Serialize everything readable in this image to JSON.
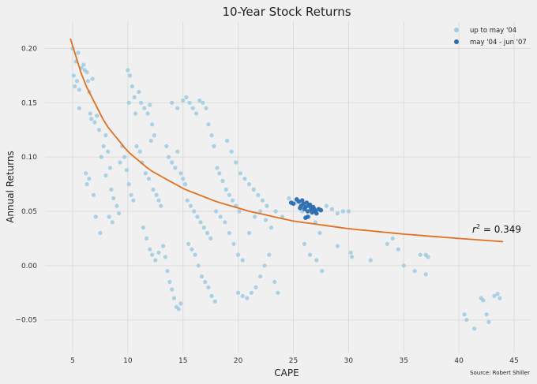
{
  "chart_data": {
    "type": "scatter",
    "title": "10-Year Stock Returns",
    "xlabel": "CAPE",
    "ylabel": "Annual Returns",
    "xlim": [
      2.5,
      46.5
    ],
    "ylim": [
      -0.08,
      0.225
    ],
    "xticks": [
      5,
      10,
      15,
      20,
      25,
      30,
      35,
      40,
      45
    ],
    "yticks": [
      -0.05,
      0.0,
      0.05,
      0.1,
      0.15,
      0.2
    ],
    "xtick_labels": [
      "5",
      "10",
      "15",
      "20",
      "25",
      "30",
      "35",
      "40",
      "45"
    ],
    "ytick_labels": [
      "−0.05",
      "0.00",
      "0.05",
      "0.10",
      "0.15",
      "0.20"
    ],
    "grid": true,
    "legend_position": "top-right",
    "annotation": "r² = 0.349",
    "annotation_parts": {
      "base": "r",
      "sup": "2",
      "rest": " = 0.349"
    },
    "source_note": "Source: Robert Shiller",
    "series": [
      {
        "name": "up to may '04",
        "color": "#9ecae1",
        "points": [
          [
            5.0,
            0.2
          ],
          [
            5.1,
            0.175
          ],
          [
            5.2,
            0.165
          ],
          [
            5.3,
            0.188
          ],
          [
            5.4,
            0.17
          ],
          [
            5.5,
            0.196
          ],
          [
            5.6,
            0.162
          ],
          [
            5.6,
            0.145
          ],
          [
            5.8,
            0.182
          ],
          [
            6.0,
            0.185
          ],
          [
            6.1,
            0.18
          ],
          [
            6.3,
            0.178
          ],
          [
            6.4,
            0.17
          ],
          [
            6.5,
            0.16
          ],
          [
            6.8,
            0.172
          ],
          [
            6.6,
            0.14
          ],
          [
            6.7,
            0.135
          ],
          [
            7.0,
            0.132
          ],
          [
            7.2,
            0.138
          ],
          [
            7.4,
            0.125
          ],
          [
            6.2,
            0.085
          ],
          [
            6.5,
            0.08
          ],
          [
            6.3,
            0.075
          ],
          [
            6.9,
            0.065
          ],
          [
            7.1,
            0.045
          ],
          [
            7.5,
            0.03
          ],
          [
            7.6,
            0.1
          ],
          [
            7.8,
            0.11
          ],
          [
            8.0,
            0.12
          ],
          [
            8.2,
            0.105
          ],
          [
            8.4,
            0.09
          ],
          [
            8.0,
            0.083
          ],
          [
            8.5,
            0.07
          ],
          [
            8.7,
            0.062
          ],
          [
            9.0,
            0.055
          ],
          [
            9.2,
            0.048
          ],
          [
            8.3,
            0.045
          ],
          [
            8.6,
            0.04
          ],
          [
            9.3,
            0.095
          ],
          [
            9.5,
            0.11
          ],
          [
            9.7,
            0.1
          ],
          [
            9.9,
            0.088
          ],
          [
            10.1,
            0.075
          ],
          [
            10.3,
            0.065
          ],
          [
            10.5,
            0.06
          ],
          [
            10.0,
            0.18
          ],
          [
            10.2,
            0.175
          ],
          [
            10.4,
            0.165
          ],
          [
            10.1,
            0.15
          ],
          [
            10.6,
            0.155
          ],
          [
            10.7,
            0.14
          ],
          [
            11.0,
            0.16
          ],
          [
            11.2,
            0.15
          ],
          [
            11.5,
            0.145
          ],
          [
            11.8,
            0.14
          ],
          [
            12.0,
            0.148
          ],
          [
            12.2,
            0.13
          ],
          [
            12.4,
            0.12
          ],
          [
            12.1,
            0.115
          ],
          [
            10.8,
            0.11
          ],
          [
            11.1,
            0.105
          ],
          [
            11.3,
            0.095
          ],
          [
            11.6,
            0.085
          ],
          [
            11.9,
            0.08
          ],
          [
            12.3,
            0.07
          ],
          [
            12.6,
            0.065
          ],
          [
            12.8,
            0.06
          ],
          [
            13.0,
            0.055
          ],
          [
            11.4,
            0.035
          ],
          [
            11.7,
            0.025
          ],
          [
            12.0,
            0.015
          ],
          [
            12.2,
            0.01
          ],
          [
            12.5,
            0.005
          ],
          [
            12.8,
            0.012
          ],
          [
            13.2,
            0.018
          ],
          [
            13.4,
            0.008
          ],
          [
            13.6,
            -0.005
          ],
          [
            13.8,
            -0.015
          ],
          [
            14.0,
            -0.022
          ],
          [
            14.2,
            -0.03
          ],
          [
            14.4,
            -0.038
          ],
          [
            14.6,
            -0.04
          ],
          [
            14.8,
            -0.035
          ],
          [
            13.5,
            0.11
          ],
          [
            13.7,
            0.1
          ],
          [
            14.0,
            0.095
          ],
          [
            14.3,
            0.09
          ],
          [
            14.5,
            0.105
          ],
          [
            14.8,
            0.085
          ],
          [
            15.0,
            0.08
          ],
          [
            15.2,
            0.075
          ],
          [
            14.0,
            0.15
          ],
          [
            14.5,
            0.145
          ],
          [
            15.0,
            0.152
          ],
          [
            15.3,
            0.155
          ],
          [
            15.6,
            0.15
          ],
          [
            15.9,
            0.145
          ],
          [
            16.2,
            0.14
          ],
          [
            16.5,
            0.152
          ],
          [
            16.8,
            0.15
          ],
          [
            17.1,
            0.145
          ],
          [
            17.3,
            0.13
          ],
          [
            17.6,
            0.12
          ],
          [
            17.8,
            0.11
          ],
          [
            15.4,
            0.06
          ],
          [
            15.7,
            0.055
          ],
          [
            16.0,
            0.05
          ],
          [
            16.3,
            0.045
          ],
          [
            16.6,
            0.04
          ],
          [
            16.9,
            0.035
          ],
          [
            17.2,
            0.03
          ],
          [
            17.5,
            0.025
          ],
          [
            15.5,
            0.02
          ],
          [
            15.8,
            0.015
          ],
          [
            16.1,
            0.01
          ],
          [
            16.4,
            0.0
          ],
          [
            16.7,
            -0.01
          ],
          [
            17.0,
            -0.015
          ],
          [
            17.3,
            -0.02
          ],
          [
            17.6,
            -0.028
          ],
          [
            17.9,
            -0.033
          ],
          [
            18.1,
            0.09
          ],
          [
            18.3,
            0.085
          ],
          [
            18.6,
            0.078
          ],
          [
            18.9,
            0.07
          ],
          [
            19.2,
            0.065
          ],
          [
            19.5,
            0.06
          ],
          [
            19.8,
            0.055
          ],
          [
            20.1,
            0.05
          ],
          [
            18.0,
            0.05
          ],
          [
            18.4,
            0.045
          ],
          [
            18.8,
            0.04
          ],
          [
            19.2,
            0.03
          ],
          [
            19.6,
            0.02
          ],
          [
            20.0,
            0.01
          ],
          [
            20.4,
            0.005
          ],
          [
            19.0,
            0.115
          ],
          [
            19.4,
            0.105
          ],
          [
            19.8,
            0.095
          ],
          [
            20.2,
            0.085
          ],
          [
            20.6,
            0.08
          ],
          [
            21.0,
            0.075
          ],
          [
            21.4,
            0.07
          ],
          [
            21.8,
            0.065
          ],
          [
            22.2,
            0.06
          ],
          [
            22.6,
            0.055
          ],
          [
            20.0,
            -0.025
          ],
          [
            20.4,
            -0.028
          ],
          [
            20.8,
            -0.03
          ],
          [
            21.2,
            -0.025
          ],
          [
            21.6,
            -0.02
          ],
          [
            22.0,
            -0.01
          ],
          [
            22.4,
            0.0
          ],
          [
            22.8,
            0.01
          ],
          [
            21.0,
            0.03
          ],
          [
            21.5,
            0.045
          ],
          [
            22.0,
            0.05
          ],
          [
            22.5,
            0.042
          ],
          [
            23.0,
            0.035
          ],
          [
            23.3,
            -0.015
          ],
          [
            23.6,
            -0.025
          ],
          [
            23.4,
            0.05
          ],
          [
            24.0,
            0.045
          ],
          [
            24.6,
            0.062
          ],
          [
            25.2,
            0.058
          ],
          [
            25.8,
            0.05
          ],
          [
            26.4,
            0.045
          ],
          [
            27.0,
            0.04
          ],
          [
            27.4,
            0.03
          ],
          [
            26.0,
            0.02
          ],
          [
            26.5,
            0.01
          ],
          [
            27.1,
            0.005
          ],
          [
            27.6,
            -0.005
          ],
          [
            28.0,
            0.055
          ],
          [
            28.5,
            0.052
          ],
          [
            29.0,
            0.048
          ],
          [
            29.5,
            0.05
          ],
          [
            30.0,
            0.05
          ],
          [
            30.2,
            0.012
          ],
          [
            29.0,
            0.018
          ],
          [
            30.3,
            0.008
          ],
          [
            32.0,
            0.005
          ],
          [
            33.5,
            0.02
          ],
          [
            34.5,
            0.015
          ],
          [
            35.0,
            0.0
          ],
          [
            36.0,
            -0.005
          ],
          [
            36.5,
            0.01
          ],
          [
            37.0,
            0.01
          ],
          [
            37.2,
            0.008
          ],
          [
            37.0,
            -0.008
          ],
          [
            34.0,
            0.025
          ],
          [
            40.5,
            -0.045
          ],
          [
            40.7,
            -0.05
          ],
          [
            41.4,
            -0.058
          ],
          [
            42.0,
            -0.03
          ],
          [
            42.2,
            -0.032
          ],
          [
            42.5,
            -0.045
          ],
          [
            42.7,
            -0.052
          ],
          [
            43.2,
            -0.028
          ],
          [
            43.5,
            -0.026
          ],
          [
            43.7,
            -0.03
          ]
        ]
      },
      {
        "name": "may '04 - jun '07",
        "color": "#2b6cb0",
        "points": [
          [
            24.8,
            0.058
          ],
          [
            25.0,
            0.057
          ],
          [
            25.3,
            0.061
          ],
          [
            25.5,
            0.059
          ],
          [
            25.7,
            0.055
          ],
          [
            25.9,
            0.057
          ],
          [
            26.0,
            0.052
          ],
          [
            26.1,
            0.054
          ],
          [
            26.2,
            0.058
          ],
          [
            26.3,
            0.05
          ],
          [
            26.4,
            0.055
          ],
          [
            26.5,
            0.056
          ],
          [
            26.6,
            0.052
          ],
          [
            26.7,
            0.049
          ],
          [
            26.8,
            0.054
          ],
          [
            26.9,
            0.052
          ],
          [
            27.0,
            0.05
          ],
          [
            27.1,
            0.048
          ],
          [
            27.3,
            0.052
          ],
          [
            27.5,
            0.051
          ],
          [
            26.1,
            0.044
          ],
          [
            26.3,
            0.045
          ],
          [
            25.6,
            0.053
          ],
          [
            25.8,
            0.06
          ]
        ]
      }
    ],
    "fit_curve": {
      "color": "#e0701e",
      "description_points": [
        [
          4.8,
          0.209
        ],
        [
          6,
          0.17
        ],
        [
          8,
          0.13
        ],
        [
          10,
          0.105
        ],
        [
          12,
          0.088
        ],
        [
          15,
          0.071
        ],
        [
          18,
          0.059
        ],
        [
          21,
          0.05
        ],
        [
          25,
          0.041
        ],
        [
          30,
          0.034
        ],
        [
          35,
          0.029
        ],
        [
          40,
          0.025
        ],
        [
          44,
          0.022
        ]
      ]
    }
  }
}
